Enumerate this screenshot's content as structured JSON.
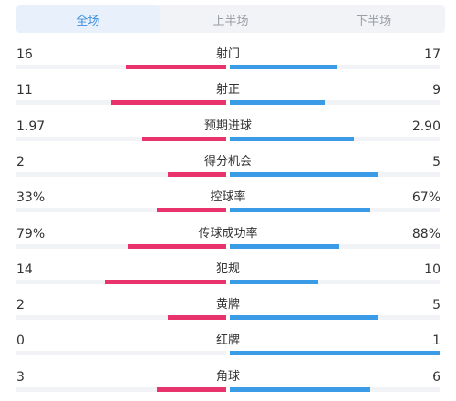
{
  "tabs": [
    {
      "label": "全场",
      "active": true
    },
    {
      "label": "上半场",
      "active": false
    },
    {
      "label": "下半场",
      "active": false
    }
  ],
  "colors": {
    "home": "#e8336d",
    "away": "#3a9be6",
    "accent": "#3a8fe0"
  },
  "stats": [
    {
      "label": "射门",
      "home": "16",
      "away": "17",
      "home_frac": 0.48,
      "away_frac": 0.51
    },
    {
      "label": "射正",
      "home": "11",
      "away": "9",
      "home_frac": 0.55,
      "away_frac": 0.45
    },
    {
      "label": "预期进球",
      "home": "1.97",
      "away": "2.90",
      "home_frac": 0.4,
      "away_frac": 0.59
    },
    {
      "label": "得分机会",
      "home": "2",
      "away": "5",
      "home_frac": 0.28,
      "away_frac": 0.71
    },
    {
      "label": "控球率",
      "home": "33%",
      "away": "67%",
      "home_frac": 0.33,
      "away_frac": 0.67
    },
    {
      "label": "传球成功率",
      "home": "79%",
      "away": "88%",
      "home_frac": 0.47,
      "away_frac": 0.52
    },
    {
      "label": "犯规",
      "home": "14",
      "away": "10",
      "home_frac": 0.58,
      "away_frac": 0.42
    },
    {
      "label": "黄牌",
      "home": "2",
      "away": "5",
      "home_frac": 0.28,
      "away_frac": 0.71
    },
    {
      "label": "红牌",
      "home": "0",
      "away": "1",
      "home_frac": 0.0,
      "away_frac": 1.0
    },
    {
      "label": "角球",
      "home": "3",
      "away": "6",
      "home_frac": 0.33,
      "away_frac": 0.67
    }
  ]
}
